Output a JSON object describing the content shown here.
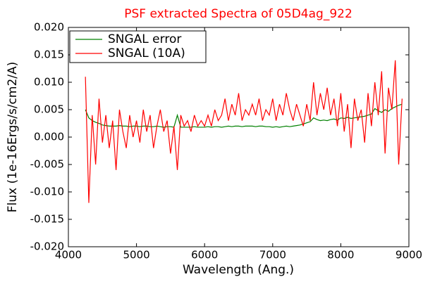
{
  "chart_data": {
    "type": "line",
    "title": "PSF extracted Spectra of 05D4ag_922",
    "xlabel": "Wavelength (Ang.)",
    "ylabel": "Flux (1e-16Ergs/s/cm2/A)",
    "xlim": [
      4000,
      9000
    ],
    "xticks": [
      4000,
      5000,
      6000,
      7000,
      8000,
      9000
    ],
    "ylim": [
      -0.02,
      0.02
    ],
    "yticks": [
      {
        "value": -0.02,
        "label": "-0.020"
      },
      {
        "value": -0.015,
        "label": "-0.015"
      },
      {
        "value": -0.01,
        "label": "-0.010"
      },
      {
        "value": -0.005,
        "label": "-0.005"
      },
      {
        "value": 0,
        "label": "0.000"
      },
      {
        "value": 0.005,
        "label": "0.005"
      },
      {
        "value": 0.01,
        "label": "0.010"
      },
      {
        "value": 0.015,
        "label": "0.015"
      },
      {
        "value": 0.02,
        "label": "0.020"
      }
    ],
    "legend": "upper left",
    "x": [
      4250,
      4300,
      4350,
      4400,
      4450,
      4500,
      4550,
      4600,
      4650,
      4700,
      4750,
      4800,
      4850,
      4900,
      4950,
      5000,
      5050,
      5100,
      5150,
      5200,
      5250,
      5300,
      5350,
      5400,
      5450,
      5500,
      5550,
      5600,
      5650,
      5700,
      5750,
      5800,
      5850,
      5900,
      5950,
      6000,
      6050,
      6100,
      6150,
      6200,
      6250,
      6300,
      6350,
      6400,
      6450,
      6500,
      6550,
      6600,
      6650,
      6700,
      6750,
      6800,
      6850,
      6900,
      6950,
      7000,
      7050,
      7100,
      7150,
      7200,
      7250,
      7300,
      7350,
      7400,
      7450,
      7500,
      7550,
      7600,
      7650,
      7700,
      7750,
      7800,
      7850,
      7900,
      7950,
      8000,
      8050,
      8100,
      8150,
      8200,
      8250,
      8300,
      8350,
      8400,
      8450,
      8500,
      8550,
      8600,
      8650,
      8700,
      8750,
      8800,
      8850,
      8900
    ],
    "series": [
      {
        "name": "SNGAL error",
        "color": "#008000",
        "values": [
          0.005,
          0.0035,
          0.003,
          0.0027,
          0.0025,
          0.0022,
          0.0021,
          0.002,
          0.002,
          0.002,
          0.0021,
          0.002,
          0.002,
          0.0019,
          0.002,
          0.002,
          0.0019,
          0.002,
          0.002,
          0.0019,
          0.0019,
          0.002,
          0.0019,
          0.0018,
          0.0019,
          0.0019,
          0.0018,
          0.004,
          0.0018,
          0.0018,
          0.0018,
          0.0018,
          0.0019,
          0.0018,
          0.0018,
          0.0018,
          0.0019,
          0.0018,
          0.0019,
          0.0019,
          0.0018,
          0.0019,
          0.002,
          0.0019,
          0.002,
          0.002,
          0.0019,
          0.002,
          0.002,
          0.002,
          0.0019,
          0.002,
          0.002,
          0.0019,
          0.0019,
          0.0018,
          0.0019,
          0.0018,
          0.0019,
          0.002,
          0.0019,
          0.002,
          0.0021,
          0.0022,
          0.0024,
          0.0026,
          0.0028,
          0.0035,
          0.0032,
          0.003,
          0.0031,
          0.003,
          0.0032,
          0.0033,
          0.0031,
          0.0035,
          0.0034,
          0.0036,
          0.0034,
          0.0035,
          0.0036,
          0.0037,
          0.0038,
          0.004,
          0.0042,
          0.0052,
          0.0048,
          0.0045,
          0.005,
          0.0047,
          0.0052,
          0.0055,
          0.0058,
          0.006
        ]
      },
      {
        "name": "SNGAL (10A)",
        "color": "#ff0000",
        "values": [
          0.011,
          -0.012,
          0.004,
          -0.005,
          0.007,
          -0.001,
          0.004,
          -0.002,
          0.003,
          -0.006,
          0.005,
          0.001,
          -0.002,
          0.004,
          0.0,
          0.003,
          -0.001,
          0.005,
          0.001,
          0.004,
          -0.002,
          0.002,
          0.005,
          0.001,
          0.003,
          -0.003,
          0.002,
          -0.006,
          0.004,
          0.002,
          0.003,
          0.001,
          0.004,
          0.002,
          0.003,
          0.002,
          0.004,
          0.002,
          0.005,
          0.003,
          0.004,
          0.007,
          0.003,
          0.006,
          0.004,
          0.008,
          0.003,
          0.005,
          0.004,
          0.006,
          0.004,
          0.007,
          0.003,
          0.005,
          0.004,
          0.007,
          0.003,
          0.006,
          0.004,
          0.008,
          0.005,
          0.003,
          0.006,
          0.004,
          0.002,
          0.006,
          0.003,
          0.01,
          0.004,
          0.008,
          0.005,
          0.009,
          0.004,
          0.007,
          0.002,
          0.008,
          0.001,
          0.006,
          -0.002,
          0.007,
          0.003,
          0.005,
          -0.001,
          0.008,
          0.002,
          0.01,
          0.004,
          0.012,
          -0.003,
          0.009,
          0.005,
          0.014,
          -0.005,
          0.007
        ]
      }
    ]
  }
}
